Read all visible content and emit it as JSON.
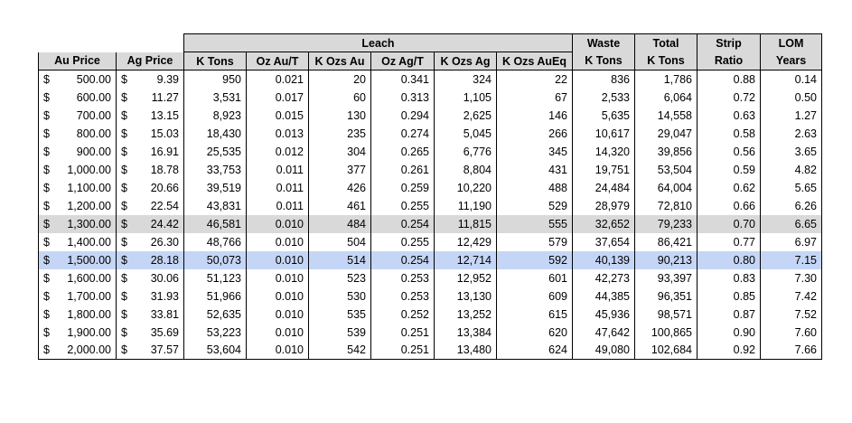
{
  "headers": {
    "leach_group": "Leach",
    "top": {
      "waste": "Waste",
      "total": "Total",
      "strip": "Strip",
      "lom": "LOM"
    },
    "columns": {
      "au_price": "Au Price",
      "ag_price": "Ag Price",
      "k_tons": "K Tons",
      "oz_au_t": "Oz Au/T",
      "k_ozs_au": "K Ozs Au",
      "oz_ag_t": "Oz Ag/T",
      "k_ozs_ag": "K Ozs Ag",
      "k_ozs_aueq": "K Ozs AuEq",
      "waste_k_tons": "K Tons",
      "total_k_tons": "K Tons",
      "strip_ratio": "Ratio",
      "lom_years": "Years"
    }
  },
  "currency_symbol": "$",
  "highlight_colors": {
    "gray": "#d9d9d9",
    "blue": "#c5d5f5"
  },
  "rows": [
    {
      "au": "500.00",
      "ag": "9.39",
      "k_tons": "950",
      "oz_au_t": "0.021",
      "k_ozs_au": "20",
      "oz_ag_t": "0.341",
      "k_ozs_ag": "324",
      "k_ozs_aueq": "22",
      "waste": "836",
      "total": "1,786",
      "strip": "0.88",
      "lom": "0.14",
      "highlight": ""
    },
    {
      "au": "600.00",
      "ag": "11.27",
      "k_tons": "3,531",
      "oz_au_t": "0.017",
      "k_ozs_au": "60",
      "oz_ag_t": "0.313",
      "k_ozs_ag": "1,105",
      "k_ozs_aueq": "67",
      "waste": "2,533",
      "total": "6,064",
      "strip": "0.72",
      "lom": "0.50",
      "highlight": ""
    },
    {
      "au": "700.00",
      "ag": "13.15",
      "k_tons": "8,923",
      "oz_au_t": "0.015",
      "k_ozs_au": "130",
      "oz_ag_t": "0.294",
      "k_ozs_ag": "2,625",
      "k_ozs_aueq": "146",
      "waste": "5,635",
      "total": "14,558",
      "strip": "0.63",
      "lom": "1.27",
      "highlight": ""
    },
    {
      "au": "800.00",
      "ag": "15.03",
      "k_tons": "18,430",
      "oz_au_t": "0.013",
      "k_ozs_au": "235",
      "oz_ag_t": "0.274",
      "k_ozs_ag": "5,045",
      "k_ozs_aueq": "266",
      "waste": "10,617",
      "total": "29,047",
      "strip": "0.58",
      "lom": "2.63",
      "highlight": ""
    },
    {
      "au": "900.00",
      "ag": "16.91",
      "k_tons": "25,535",
      "oz_au_t": "0.012",
      "k_ozs_au": "304",
      "oz_ag_t": "0.265",
      "k_ozs_ag": "6,776",
      "k_ozs_aueq": "345",
      "waste": "14,320",
      "total": "39,856",
      "strip": "0.56",
      "lom": "3.65",
      "highlight": ""
    },
    {
      "au": "1,000.00",
      "ag": "18.78",
      "k_tons": "33,753",
      "oz_au_t": "0.011",
      "k_ozs_au": "377",
      "oz_ag_t": "0.261",
      "k_ozs_ag": "8,804",
      "k_ozs_aueq": "431",
      "waste": "19,751",
      "total": "53,504",
      "strip": "0.59",
      "lom": "4.82",
      "highlight": ""
    },
    {
      "au": "1,100.00",
      "ag": "20.66",
      "k_tons": "39,519",
      "oz_au_t": "0.011",
      "k_ozs_au": "426",
      "oz_ag_t": "0.259",
      "k_ozs_ag": "10,220",
      "k_ozs_aueq": "488",
      "waste": "24,484",
      "total": "64,004",
      "strip": "0.62",
      "lom": "5.65",
      "highlight": ""
    },
    {
      "au": "1,200.00",
      "ag": "22.54",
      "k_tons": "43,831",
      "oz_au_t": "0.011",
      "k_ozs_au": "461",
      "oz_ag_t": "0.255",
      "k_ozs_ag": "11,190",
      "k_ozs_aueq": "529",
      "waste": "28,979",
      "total": "72,810",
      "strip": "0.66",
      "lom": "6.26",
      "highlight": ""
    },
    {
      "au": "1,300.00",
      "ag": "24.42",
      "k_tons": "46,581",
      "oz_au_t": "0.010",
      "k_ozs_au": "484",
      "oz_ag_t": "0.254",
      "k_ozs_ag": "11,815",
      "k_ozs_aueq": "555",
      "waste": "32,652",
      "total": "79,233",
      "strip": "0.70",
      "lom": "6.65",
      "highlight": "gray"
    },
    {
      "au": "1,400.00",
      "ag": "26.30",
      "k_tons": "48,766",
      "oz_au_t": "0.010",
      "k_ozs_au": "504",
      "oz_ag_t": "0.255",
      "k_ozs_ag": "12,429",
      "k_ozs_aueq": "579",
      "waste": "37,654",
      "total": "86,421",
      "strip": "0.77",
      "lom": "6.97",
      "highlight": ""
    },
    {
      "au": "1,500.00",
      "ag": "28.18",
      "k_tons": "50,073",
      "oz_au_t": "0.010",
      "k_ozs_au": "514",
      "oz_ag_t": "0.254",
      "k_ozs_ag": "12,714",
      "k_ozs_aueq": "592",
      "waste": "40,139",
      "total": "90,213",
      "strip": "0.80",
      "lom": "7.15",
      "highlight": "blue"
    },
    {
      "au": "1,600.00",
      "ag": "30.06",
      "k_tons": "51,123",
      "oz_au_t": "0.010",
      "k_ozs_au": "523",
      "oz_ag_t": "0.253",
      "k_ozs_ag": "12,952",
      "k_ozs_aueq": "601",
      "waste": "42,273",
      "total": "93,397",
      "strip": "0.83",
      "lom": "7.30",
      "highlight": ""
    },
    {
      "au": "1,700.00",
      "ag": "31.93",
      "k_tons": "51,966",
      "oz_au_t": "0.010",
      "k_ozs_au": "530",
      "oz_ag_t": "0.253",
      "k_ozs_ag": "13,130",
      "k_ozs_aueq": "609",
      "waste": "44,385",
      "total": "96,351",
      "strip": "0.85",
      "lom": "7.42",
      "highlight": ""
    },
    {
      "au": "1,800.00",
      "ag": "33.81",
      "k_tons": "52,635",
      "oz_au_t": "0.010",
      "k_ozs_au": "535",
      "oz_ag_t": "0.252",
      "k_ozs_ag": "13,252",
      "k_ozs_aueq": "615",
      "waste": "45,936",
      "total": "98,571",
      "strip": "0.87",
      "lom": "7.52",
      "highlight": ""
    },
    {
      "au": "1,900.00",
      "ag": "35.69",
      "k_tons": "53,223",
      "oz_au_t": "0.010",
      "k_ozs_au": "539",
      "oz_ag_t": "0.251",
      "k_ozs_ag": "13,384",
      "k_ozs_aueq": "620",
      "waste": "47,642",
      "total": "100,865",
      "strip": "0.90",
      "lom": "7.60",
      "highlight": ""
    },
    {
      "au": "2,000.00",
      "ag": "37.57",
      "k_tons": "53,604",
      "oz_au_t": "0.010",
      "k_ozs_au": "542",
      "oz_ag_t": "0.251",
      "k_ozs_ag": "13,480",
      "k_ozs_aueq": "624",
      "waste": "49,080",
      "total": "102,684",
      "strip": "0.92",
      "lom": "7.66",
      "highlight": ""
    }
  ]
}
